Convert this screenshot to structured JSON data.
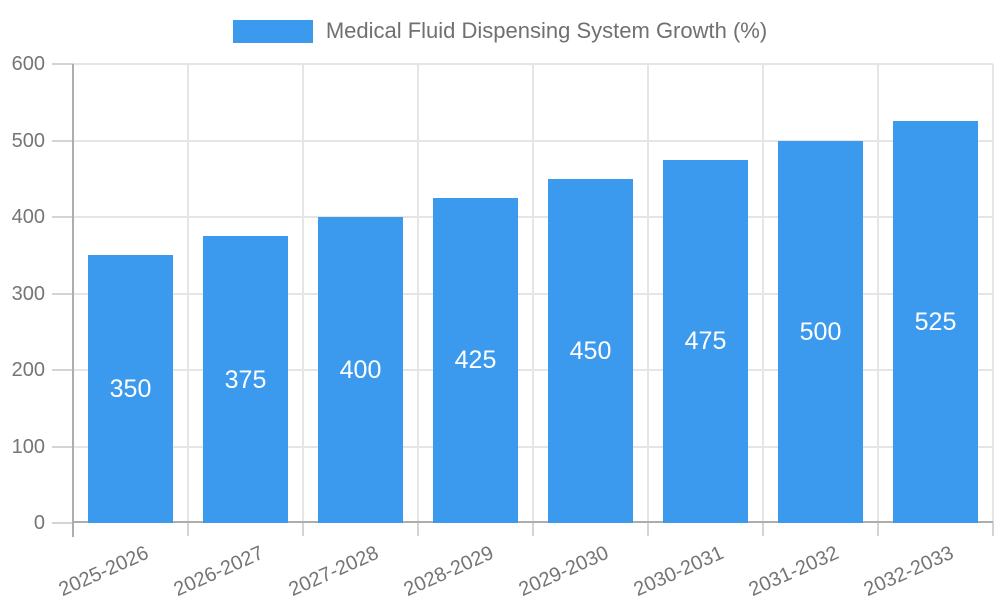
{
  "legend": {
    "label": "Medical Fluid Dispensing System Growth (%)"
  },
  "chart_data": {
    "type": "bar",
    "title": "Medical Fluid Dispensing System Growth (%)",
    "series_name": "Medical Fluid Dispensing System Growth (%)",
    "categories": [
      "2025-2026",
      "2026-2027",
      "2027-2028",
      "2028-2029",
      "2029-2030",
      "2030-2031",
      "2031-2032",
      "2032-2033"
    ],
    "values": [
      350,
      375,
      400,
      425,
      450,
      475,
      500,
      525
    ],
    "value_labels": [
      "350",
      "375",
      "400",
      "425",
      "450",
      "475",
      "500",
      "525"
    ],
    "value_label_position": "center",
    "xlabel": "",
    "ylabel": "",
    "ylim": [
      0,
      600
    ],
    "yticks": [
      0,
      100,
      200,
      300,
      400,
      500,
      600
    ],
    "ytick_labels": [
      "0",
      "100",
      "200",
      "300",
      "400",
      "500",
      "600"
    ],
    "grid": true,
    "legend_position": "top-center",
    "xlabel_rotation_deg": -24,
    "colors": {
      "bar": "#3B9AEE",
      "bar_value_text": "#FFFFFF",
      "axis_line": "#ADADAD",
      "gridline": "#E5E5E5",
      "tick": "#D4D4D4",
      "tick_label_text": "#757575",
      "legend_text": "#707070",
      "background": "#FFFFFF"
    }
  }
}
